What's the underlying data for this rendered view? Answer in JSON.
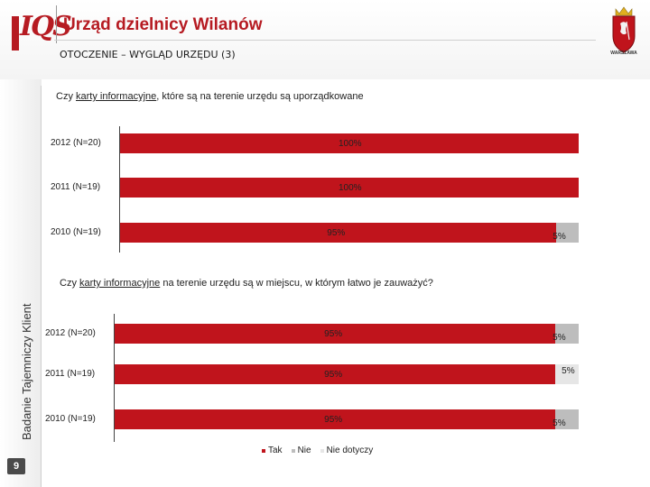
{
  "header": {
    "logo_text": "IQS",
    "title": "Urząd dzielnicy Wilanów",
    "subtitle": "OTOCZENIE – WYGLĄD URZĘDU (3)",
    "crest_label": "WARSZAWA"
  },
  "sidebar": {
    "caption": "Badanie Tajemniczy Klient",
    "page_number": "9"
  },
  "colors": {
    "tak": "#c0141c",
    "nie": "#bdbdbd",
    "nie_dotyczy": "#e6e6e6"
  },
  "legend": {
    "items": [
      {
        "label": "Tak",
        "color": "#c0141c"
      },
      {
        "label": "Nie",
        "color": "#bdbdbd"
      },
      {
        "label": "Nie dotyczy",
        "color": "#e6e6e6"
      }
    ]
  },
  "chart_data": [
    {
      "type": "bar",
      "orientation": "horizontal",
      "stacked": true,
      "question_prefix": "Czy ",
      "question_underlined": "karty informacyjne",
      "question_suffix": ", które są na terenie urzędu są uporządkowane",
      "categories": [
        "2012 (N=20)",
        "2011 (N=19)",
        "2010 (N=19)"
      ],
      "series": [
        {
          "name": "Tak",
          "values": [
            100,
            100,
            95
          ]
        },
        {
          "name": "Nie",
          "values": [
            0,
            0,
            5
          ]
        },
        {
          "name": "Nie dotyczy",
          "values": [
            0,
            0,
            0
          ]
        }
      ],
      "data_labels": [
        [
          "100%",
          "",
          ""
        ],
        [
          "100%",
          "",
          ""
        ],
        [
          "95%",
          "5%",
          ""
        ]
      ],
      "xlim": [
        0,
        100
      ]
    },
    {
      "type": "bar",
      "orientation": "horizontal",
      "stacked": true,
      "question_prefix": "Czy ",
      "question_underlined": "karty informacyjne",
      "question_suffix": " na terenie urzędu są w miejscu, w którym łatwo je zauważyć?",
      "categories": [
        "2012 (N=20)",
        "2011 (N=19)",
        "2010 (N=19)"
      ],
      "series": [
        {
          "name": "Tak",
          "values": [
            95,
            95,
            95
          ]
        },
        {
          "name": "Nie",
          "values": [
            5,
            0,
            5
          ]
        },
        {
          "name": "Nie dotyczy",
          "values": [
            0,
            5,
            0
          ]
        }
      ],
      "data_labels": [
        [
          "95%",
          "5%",
          ""
        ],
        [
          "95%",
          "",
          "5%"
        ],
        [
          "95%",
          "5%",
          ""
        ]
      ],
      "xlim": [
        0,
        100
      ]
    }
  ]
}
